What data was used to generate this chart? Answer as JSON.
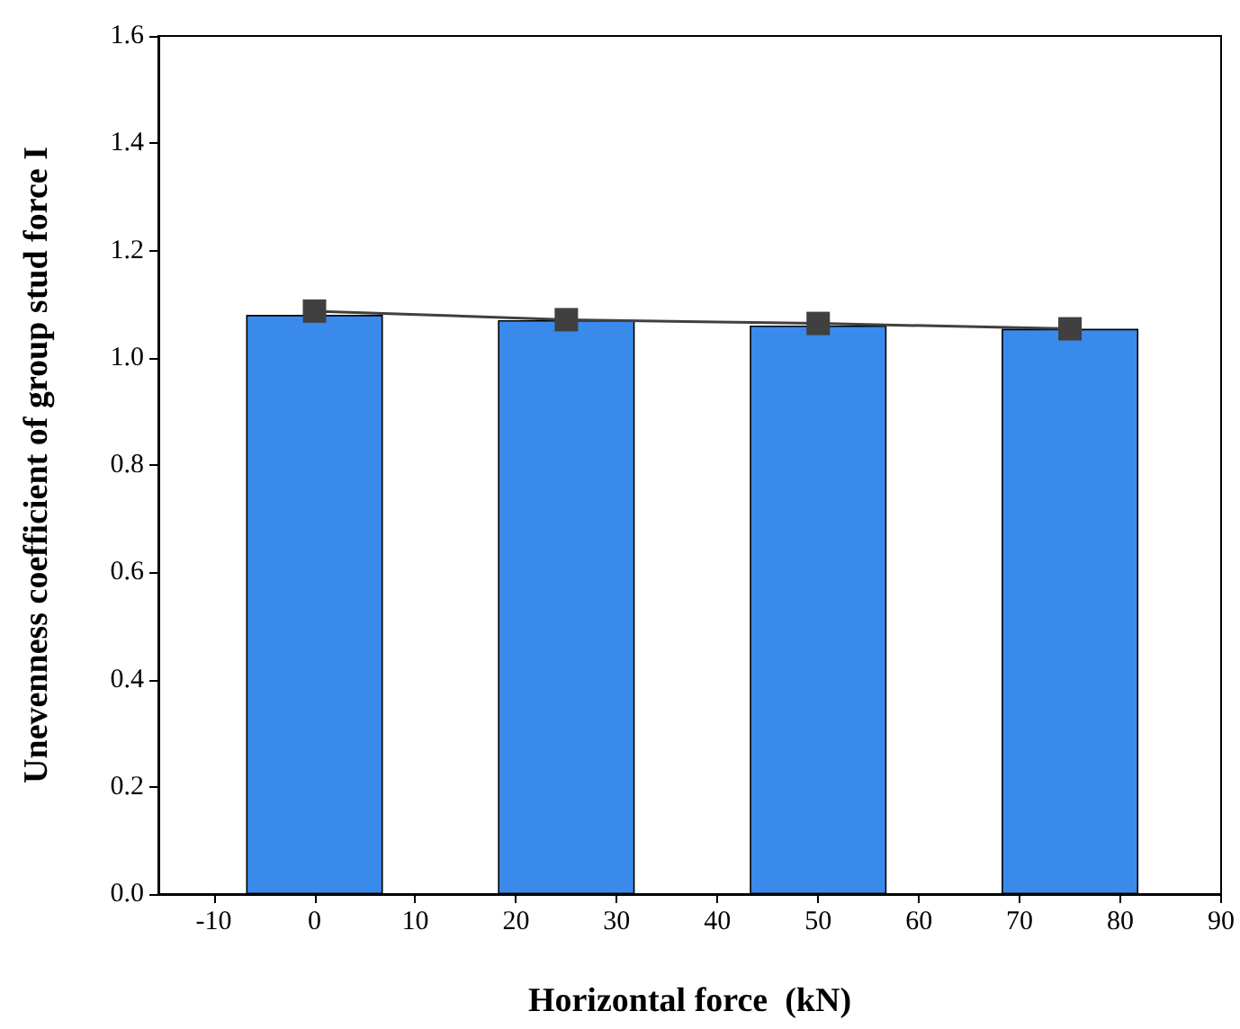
{
  "chart_data": {
    "type": "bar",
    "xlabel": "Horizontal force  (kN)",
    "ylabel": "Unevenness coefficient of group stud force I",
    "x": [
      0,
      25,
      50,
      75
    ],
    "series": [
      {
        "color": "#3a8aec",
        "values": [
          1.08,
          1.07,
          1.06,
          1.054
        ]
      },
      {
        "type": "line",
        "color": "#404040",
        "values": [
          1.087,
          1.071,
          1.064,
          1.054
        ],
        "marker": "square",
        "line_style": "solid"
      }
    ],
    "xlim": [
      -15.5,
      90
    ],
    "xticks": [
      -10,
      0,
      10,
      20,
      30,
      40,
      50,
      60,
      70,
      80,
      90
    ],
    "ylim": [
      0,
      1.6
    ],
    "yticks": [
      {
        "value": 0,
        "label": "0.0"
      },
      0.2,
      0.4,
      0.6,
      0.8,
      {
        "value": 1,
        "label": "1.0"
      },
      1.2,
      1.4,
      1.6
    ]
  }
}
